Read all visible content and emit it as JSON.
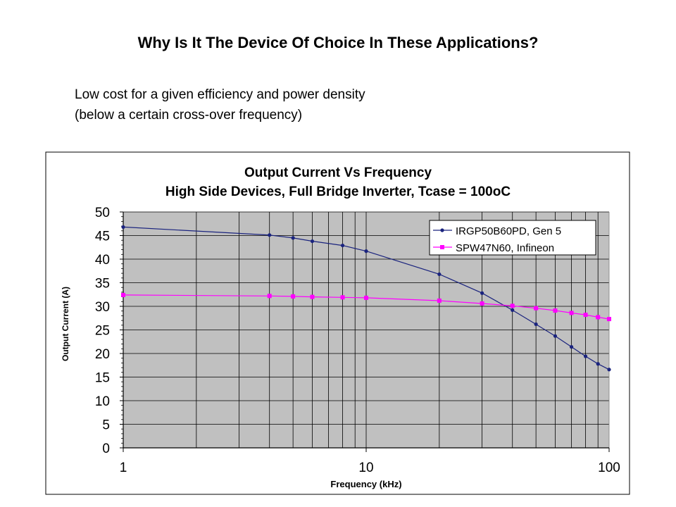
{
  "slide": {
    "title": "Why Is It The Device Of Choice In These Applications?",
    "bullet_line1": "Low cost for a given efficiency and power density",
    "bullet_line2": "(below a certain cross-over frequency)"
  },
  "chart_data": {
    "type": "line",
    "title": "Output Current Vs Frequency",
    "subtitle": "High Side Devices, Full Bridge Inverter, Tcase = 100oC",
    "xlabel": "Frequency (kHz)",
    "ylabel": "Output Current (A)",
    "xscale": "log",
    "xlim": [
      1,
      100
    ],
    "ylim": [
      0,
      50
    ],
    "x_ticks": [
      1,
      10,
      100
    ],
    "y_ticks": [
      0,
      5,
      10,
      15,
      20,
      25,
      30,
      35,
      40,
      45,
      50
    ],
    "grid": true,
    "legend_position": "top-right",
    "plot_background": "#c0c0c0",
    "series": [
      {
        "name": "IRGP50B60PD, Gen 5",
        "color": "#1a237e",
        "marker": "circle",
        "x": [
          1,
          4,
          5,
          6,
          8,
          10,
          20,
          30,
          40,
          50,
          60,
          70,
          80,
          90,
          100
        ],
        "y": [
          46.8,
          45.1,
          44.5,
          43.8,
          42.9,
          41.7,
          36.8,
          32.8,
          29.2,
          26.2,
          23.7,
          21.4,
          19.4,
          17.8,
          16.6
        ]
      },
      {
        "name": "SPW47N60, Infineon",
        "color": "#ff00ff",
        "marker": "square",
        "x": [
          1,
          4,
          5,
          6,
          8,
          10,
          20,
          30,
          40,
          50,
          60,
          70,
          80,
          90,
          100
        ],
        "y": [
          32.4,
          32.2,
          32.1,
          32.0,
          31.9,
          31.8,
          31.2,
          30.6,
          30.1,
          29.6,
          29.1,
          28.6,
          28.2,
          27.7,
          27.3
        ]
      }
    ]
  }
}
